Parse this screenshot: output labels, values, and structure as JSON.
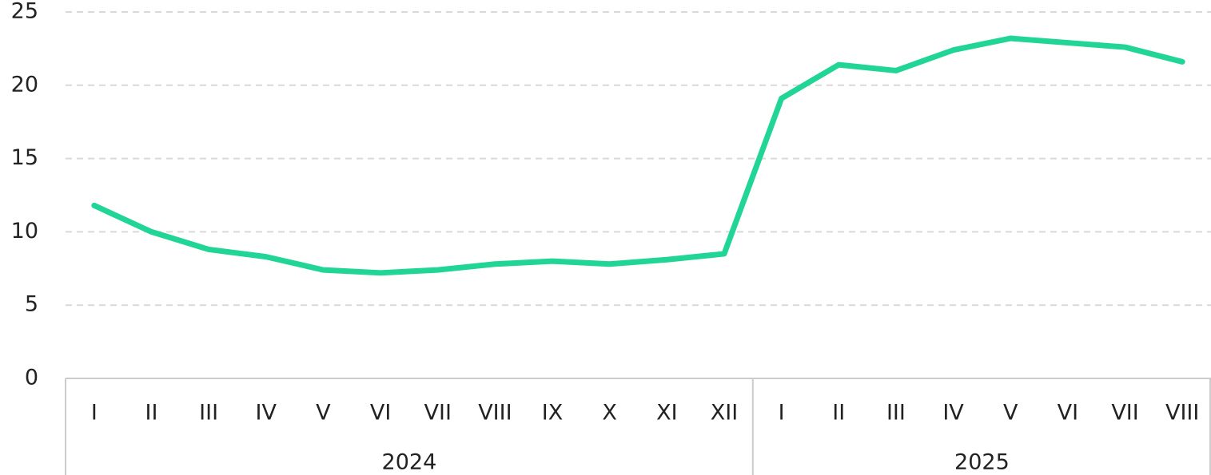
{
  "chart_data": {
    "type": "line",
    "groups": [
      {
        "label": "2024",
        "categories": [
          "I",
          "II",
          "III",
          "IV",
          "V",
          "VI",
          "VII",
          "VIII",
          "IX",
          "X",
          "XI",
          "XII"
        ]
      },
      {
        "label": "2025",
        "categories": [
          "I",
          "II",
          "III",
          "IV",
          "V",
          "VI",
          "VII",
          "VIII"
        ]
      }
    ],
    "values": [
      11.8,
      10.0,
      8.8,
      8.3,
      7.4,
      7.2,
      7.4,
      7.8,
      8.0,
      7.8,
      8.1,
      8.5,
      19.1,
      21.4,
      21.0,
      22.4,
      23.2,
      22.9,
      22.6,
      21.6
    ],
    "color": "#20d596",
    "ylim": [
      0,
      25
    ],
    "yticks": [
      0,
      5,
      10,
      15,
      20,
      25
    ],
    "grid": true
  }
}
